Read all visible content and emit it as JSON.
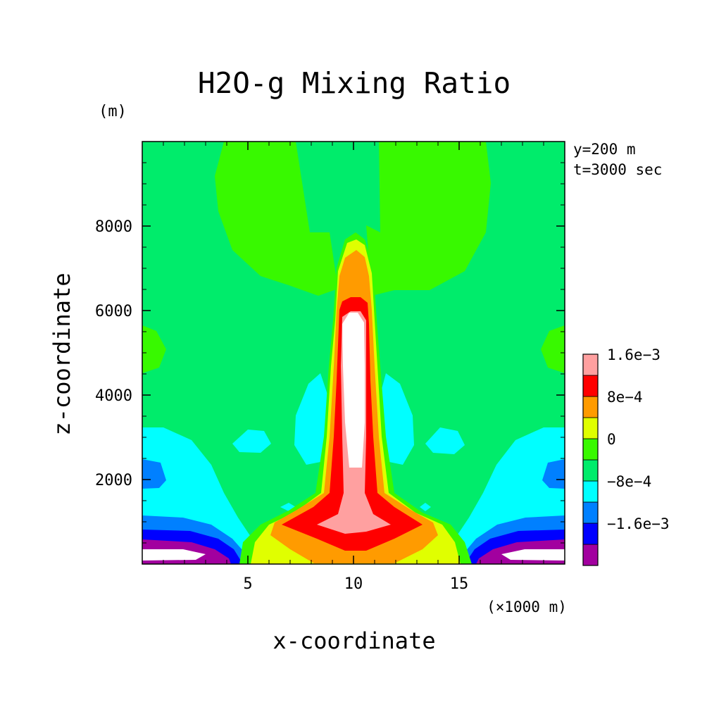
{
  "chart_data": {
    "type": "heatmap",
    "title": "H2O-g Mixing Ratio",
    "xlabel": "x-coordinate",
    "ylabel": "z-coordinate",
    "y_unit": "(m)",
    "x_unit": "(×1000 m)",
    "annotation_lines": [
      "y=200 m",
      "t=3000 sec"
    ],
    "xlim": [
      0,
      20
    ],
    "ylim": [
      0,
      10000
    ],
    "x_ticks": [
      5,
      10,
      15
    ],
    "y_ticks": [
      2000,
      4000,
      6000,
      8000
    ],
    "grid": false,
    "legend": "right",
    "colorbar": {
      "levels": [
        {
          "color": "#a2009f"
        },
        {
          "color": "#0000ff",
          "label": "−1.6e−3"
        },
        {
          "color": "#0080ff"
        },
        {
          "color": "#00ffff",
          "label": "−8e−4"
        },
        {
          "color": "#00ec6b"
        },
        {
          "color": "#38f900",
          "label": "0"
        },
        {
          "color": "#e0ff00"
        },
        {
          "color": "#ff9b00",
          "label": "8e−4"
        },
        {
          "color": "#ff0000"
        },
        {
          "color": "#ffa0a0",
          "label": "1.6e−3"
        }
      ]
    },
    "regions": [
      {
        "level": "-2.0e-3",
        "color": "#a2009f",
        "x": [
          0,
          5.8
        ],
        "z": [
          0,
          650
        ]
      },
      {
        "level": "-2.0e-3",
        "color": "#a2009f",
        "x": [
          14.2,
          20
        ],
        "z": [
          0,
          650
        ]
      },
      {
        "level": "-1.6e-3",
        "color": "#0000ff",
        "x": [
          0,
          6.2
        ],
        "z": [
          0,
          900
        ]
      },
      {
        "level": "-1.6e-3",
        "color": "#0000ff",
        "x": [
          13.8,
          20
        ],
        "z": [
          0,
          900
        ]
      },
      {
        "level": "-1.2e-3",
        "color": "#0080ff",
        "x": [
          0,
          6.6
        ],
        "z": [
          0,
          2600
        ]
      },
      {
        "level": "-1.2e-3",
        "color": "#0080ff",
        "x": [
          13.4,
          20
        ],
        "z": [
          0,
          2600
        ]
      },
      {
        "level": "-8e-4",
        "color": "#00ffff",
        "x": [
          0,
          6.9
        ],
        "z": [
          0,
          3300
        ]
      },
      {
        "level": "-8e-4",
        "color": "#00ffff",
        "x": [
          13.1,
          20
        ],
        "z": [
          0,
          3300
        ]
      },
      {
        "level": "-8e-4",
        "color": "#00ffff",
        "x": [
          4.5,
          16
        ],
        "z": [
          1000,
          4300
        ]
      },
      {
        "level": "4e-4",
        "color": "#e0ff00",
        "x": [
          8.5,
          11.5
        ],
        "z": [
          0,
          7500
        ]
      },
      {
        "level": "8e-4",
        "color": "#ff9b00",
        "x": [
          7.5,
          12.5
        ],
        "z": [
          0,
          7300
        ]
      },
      {
        "level": "1.2e-3",
        "color": "#ff0000",
        "x": [
          7.7,
          12.3
        ],
        "z": [
          0,
          6300
        ]
      },
      {
        "level": "1.6e-3",
        "color": "#ffa0a0",
        "x": [
          8.4,
          11.6
        ],
        "z": [
          300,
          6100
        ]
      },
      {
        "level": ">2.0e-3",
        "color": "#ffffff",
        "x": [
          9.3,
          10.6
        ],
        "z": [
          2300,
          6000
        ]
      },
      {
        "level": ">2.0e-3",
        "color": "#ffffff",
        "x": [
          0,
          3.2
        ],
        "z": [
          0,
          350
        ]
      },
      {
        "level": ">2.0e-3",
        "color": "#ffffff",
        "x": [
          16.8,
          20
        ],
        "z": [
          0,
          350
        ]
      },
      {
        "level": "0",
        "color": "#38f900",
        "x": [
          3.4,
          16.6
        ],
        "z": [
          6400,
          10000
        ]
      }
    ]
  }
}
